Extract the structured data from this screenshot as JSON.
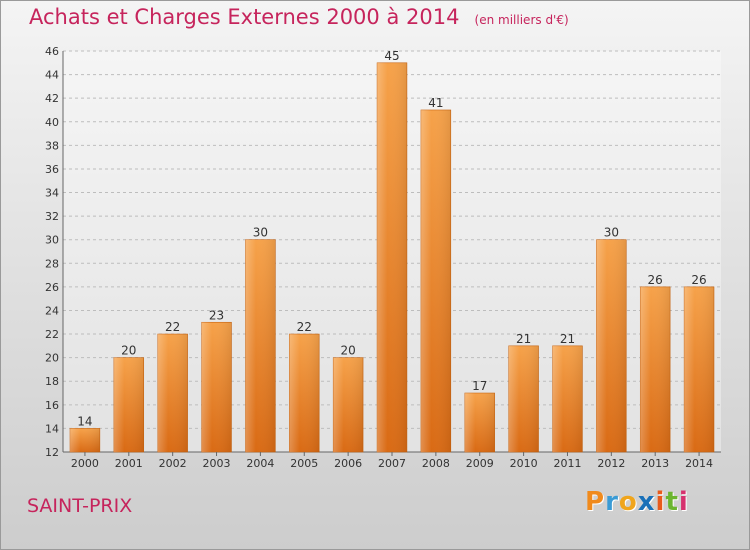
{
  "header": {
    "title": "Achats et Charges Externes 2000 à 2014",
    "subtitle": "(en milliers d'€)"
  },
  "footer": {
    "commune": "SAINT-PRIX",
    "logo": {
      "letters": [
        "P",
        "r",
        "o",
        "x",
        "i",
        "t",
        "i"
      ],
      "colors": [
        "#f08a1c",
        "#3a9bd5",
        "#f0a51c",
        "#1a70b8",
        "#e85a1c",
        "#6bb52f",
        "#d6326e"
      ]
    }
  },
  "chart_data": {
    "type": "bar",
    "title": "Achats et Charges Externes 2000 à 2014",
    "subtitle": "(en milliers d'€)",
    "categories": [
      "2000",
      "2001",
      "2002",
      "2003",
      "2004",
      "2005",
      "2006",
      "2007",
      "2008",
      "2009",
      "2010",
      "2011",
      "2012",
      "2013",
      "2014"
    ],
    "values": [
      14,
      20,
      22,
      23,
      30,
      22,
      20,
      45,
      41,
      17,
      21,
      21,
      30,
      26,
      26
    ],
    "ylim": [
      12,
      46
    ],
    "yticks": [
      12,
      14,
      16,
      18,
      20,
      22,
      24,
      26,
      28,
      30,
      32,
      34,
      36,
      38,
      40,
      42,
      44,
      46
    ],
    "grid": true,
    "bar_color": "#f08a2a",
    "data_labels": true
  }
}
